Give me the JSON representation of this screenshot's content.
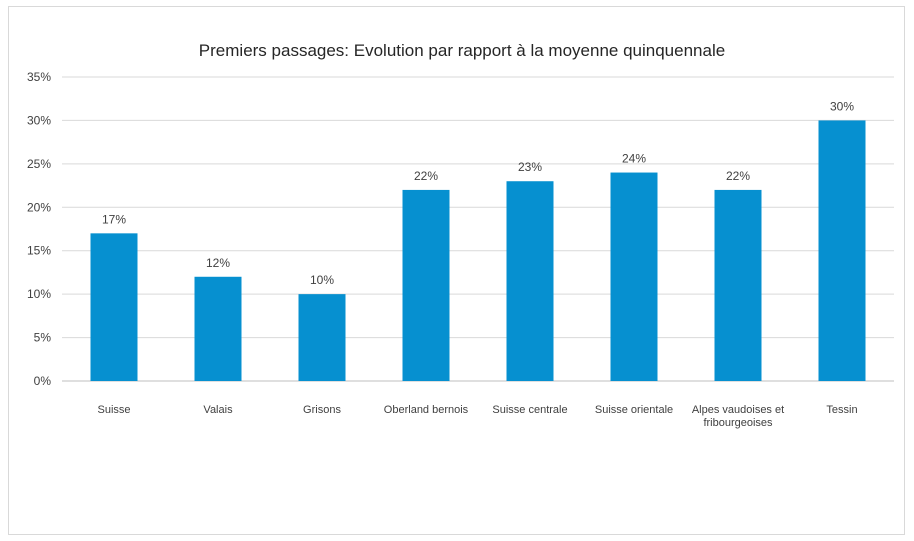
{
  "chart_data": {
    "type": "bar",
    "title": "Premiers passages: Evolution par rapport à la moyenne quinquennale",
    "xlabel": "",
    "ylabel": "",
    "categories": [
      "Suisse",
      "Valais",
      "Grisons",
      "Oberland bernois",
      "Suisse centrale",
      "Suisse orientale",
      "Alpes vaudoises et fribourgeoises",
      "Tessin"
    ],
    "values": [
      17,
      12,
      10,
      22,
      23,
      24,
      22,
      30
    ],
    "value_labels": [
      "17%",
      "12%",
      "10%",
      "22%",
      "23%",
      "24%",
      "22%",
      "30%"
    ],
    "ylim": [
      0,
      35
    ],
    "yticks": [
      "0%",
      "5%",
      "10%",
      "15%",
      "20%",
      "25%",
      "30%",
      "35%"
    ],
    "grid": true,
    "legend": "none",
    "bar_color": "#0690d0",
    "grid_color": "#d9d9d9"
  }
}
